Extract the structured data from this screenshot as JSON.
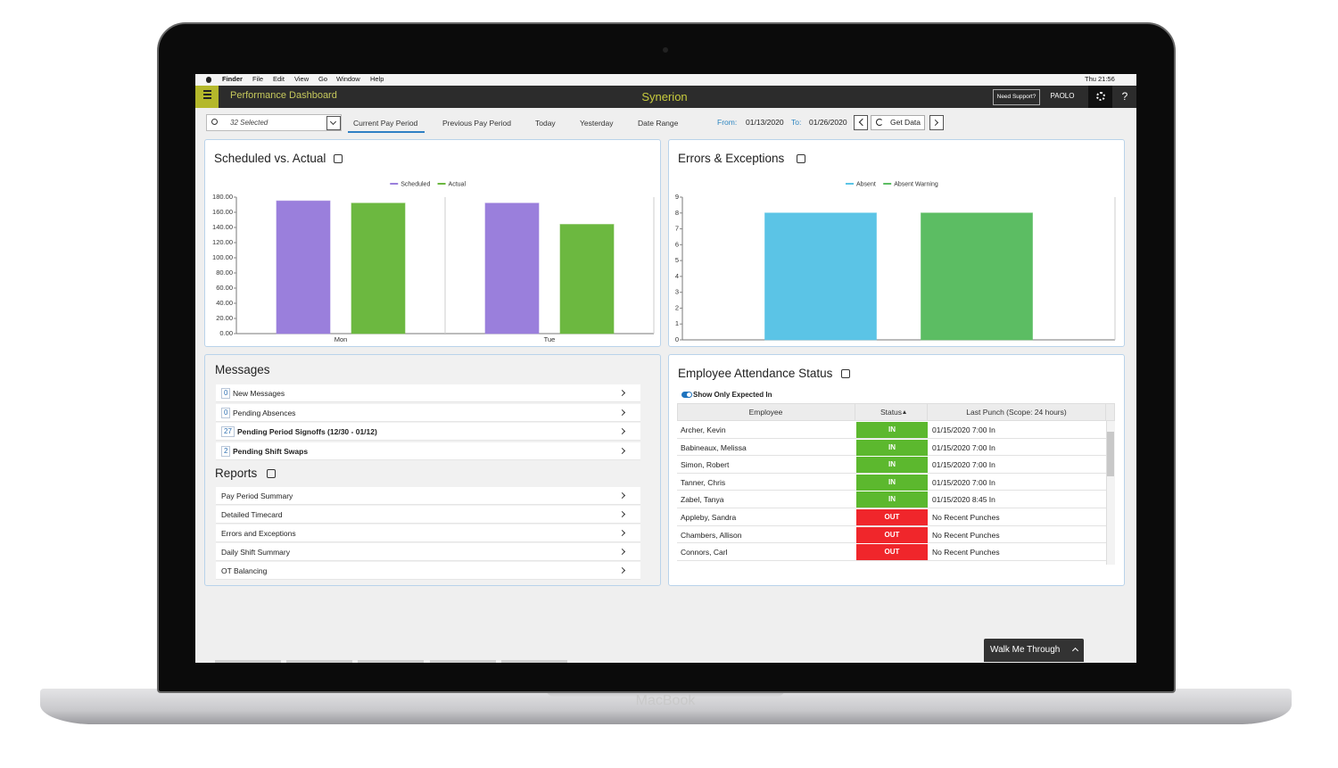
{
  "menubar": {
    "items": [
      "Finder",
      "File",
      "Edit",
      "View",
      "Go",
      "Window",
      "Help"
    ],
    "clock": "Thu 21:56"
  },
  "header": {
    "title": "Performance Dashboard",
    "brand": "Synerion",
    "support": "Need Support?",
    "user": "PAOLO",
    "help": "?"
  },
  "toolbar": {
    "selector": "32 Selected",
    "tabs": [
      "Current Pay Period",
      "Previous Pay Period",
      "Today",
      "Yesterday",
      "Date Range"
    ],
    "from_label": "From:",
    "from": "01/13/2020",
    "to_label": "To:",
    "to": "01/26/2020",
    "get_data": "Get Data"
  },
  "scheduled_chart": {
    "type": "bar",
    "title": "Scheduled vs. Actual",
    "categories": [
      "Mon",
      "Tue"
    ],
    "series": [
      {
        "name": "Scheduled",
        "color": "#9a7fdc",
        "values": [
          175,
          172
        ]
      },
      {
        "name": "Actual",
        "color": "#6cb840",
        "values": [
          172,
          144
        ]
      }
    ],
    "ylim": [
      0,
      180
    ],
    "yticks": [
      {
        "value": 0,
        "label": "0.00"
      },
      {
        "value": 20,
        "label": "20.00"
      },
      {
        "value": 40,
        "label": "40.00"
      },
      {
        "value": 60,
        "label": "60.00"
      },
      {
        "value": 80,
        "label": "80.00"
      },
      {
        "value": 100,
        "label": "100.00"
      },
      {
        "value": 120,
        "label": "120.00"
      },
      {
        "value": 140,
        "label": "140.00"
      },
      {
        "value": 160,
        "label": "160.00"
      },
      {
        "value": 180,
        "label": "180.00"
      }
    ]
  },
  "errors_chart": {
    "type": "bar",
    "title": "Errors & Exceptions",
    "categories": [
      null
    ],
    "series": [
      {
        "name": "Absent",
        "color": "#5bc4e6",
        "values": [
          8
        ]
      },
      {
        "name": "Absent Warning",
        "color": "#5cbd63",
        "values": [
          8
        ]
      }
    ],
    "ylim": [
      0,
      9
    ],
    "yticks": [
      0,
      1,
      2,
      3,
      4,
      5,
      6,
      7,
      8,
      9
    ]
  },
  "messages": {
    "title": "Messages",
    "items": [
      {
        "count": 0,
        "label": "New Messages"
      },
      {
        "count": 0,
        "label": "Pending Absences"
      },
      {
        "count": 27,
        "label": "Pending Period Signoffs (12/30 - 01/12)"
      },
      {
        "count": 2,
        "label": "Pending Shift Swaps"
      }
    ]
  },
  "reports": {
    "title": "Reports",
    "items": [
      "Pay Period Summary",
      "Detailed Timecard",
      "Errors and Exceptions",
      "Daily Shift Summary",
      "OT Balancing"
    ]
  },
  "attendance": {
    "title": "Employee Attendance Status",
    "toggle": "Show Only Expected In",
    "columns": [
      "Employee",
      "Status",
      "Last Punch (Scope: 24 hours)"
    ],
    "rows": [
      {
        "employee": "Archer, Kevin",
        "status": "IN",
        "last_punch": "01/15/2020 7:00 In",
        "color": "#5cb82e"
      },
      {
        "employee": "Babineaux, Melissa",
        "status": "IN",
        "last_punch": "01/15/2020 7:00 In",
        "color": "#5cb82e"
      },
      {
        "employee": "Simon, Robert",
        "status": "IN",
        "last_punch": "01/15/2020 7:00 In",
        "color": "#5cb82e"
      },
      {
        "employee": "Tanner, Chris",
        "status": "IN",
        "last_punch": "01/15/2020 7:00 In",
        "color": "#5cb82e"
      },
      {
        "employee": "Zabel, Tanya",
        "status": "IN",
        "last_punch": "01/15/2020 8:45 In",
        "color": "#5cb82e"
      },
      {
        "employee": "Appleby, Sandra",
        "status": "OUT",
        "last_punch": "No Recent Punches",
        "color": "#f0262b"
      },
      {
        "employee": "Chambers, Allison",
        "status": "OUT",
        "last_punch": "No Recent Punches",
        "color": "#f0262b"
      },
      {
        "employee": "Connors, Carl",
        "status": "OUT",
        "last_punch": "No Recent Punches",
        "color": "#f0262b"
      }
    ]
  },
  "walkme": "Walk Me Through",
  "device": "MacBook"
}
